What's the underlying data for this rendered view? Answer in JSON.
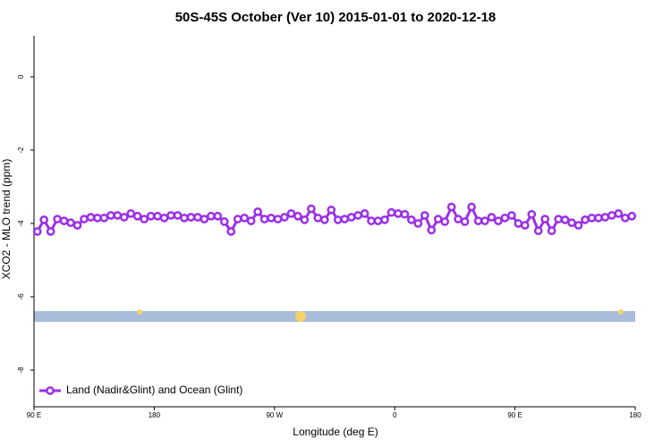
{
  "chart_data": {
    "type": "line",
    "title": "50S-45S October (Ver 10)   2015-01-01 to 2020-12-18",
    "x_label": "Longitude (deg E)",
    "y_label": "XCO2 - MLO trend (ppm)",
    "x": [
      92.5,
      97.5,
      102.5,
      107.5,
      112.5,
      117.5,
      122.5,
      127.5,
      132.5,
      137.5,
      142.5,
      147.5,
      152.5,
      157.5,
      162.5,
      167.5,
      172.5,
      177.5,
      182.5,
      187.5,
      192.5,
      197.5,
      202.5,
      207.5,
      212.5,
      217.5,
      222.5,
      227.5,
      232.5,
      237.5,
      242.5,
      247.5,
      252.5,
      257.5,
      262.5,
      267.5,
      272.5,
      277.5,
      282.5,
      287.5,
      292.5,
      297.5,
      302.5,
      307.5,
      312.5,
      317.5,
      322.5,
      327.5,
      332.5,
      337.5,
      342.5,
      347.5,
      352.5,
      357.5,
      362.5,
      367.5,
      372.5,
      377.5,
      382.5,
      387.5,
      392.5,
      397.5,
      402.5,
      407.5,
      412.5,
      417.5,
      422.5,
      427.5,
      432.5,
      437.5,
      442.5,
      447.5,
      452.5,
      457.5,
      462.5,
      467.5,
      472.5,
      477.5,
      482.5,
      487.5,
      492.5,
      497.5,
      502.5,
      507.5,
      512.5,
      517.5,
      522.5,
      527.5,
      532.5,
      537.5
    ],
    "series": [
      {
        "name": "Land (Nadir&Glint) and Ocean (Glint)",
        "color": "#9b30e8",
        "values": [
          -4.22,
          -3.9,
          -4.22,
          -3.88,
          -3.93,
          -3.98,
          -4.05,
          -3.88,
          -3.83,
          -3.85,
          -3.85,
          -3.78,
          -3.78,
          -3.83,
          -3.73,
          -3.8,
          -3.88,
          -3.8,
          -3.8,
          -3.85,
          -3.78,
          -3.78,
          -3.85,
          -3.83,
          -3.83,
          -3.88,
          -3.8,
          -3.8,
          -3.95,
          -4.22,
          -3.88,
          -3.85,
          -3.93,
          -3.68,
          -3.88,
          -3.85,
          -3.88,
          -3.83,
          -3.73,
          -3.8,
          -3.9,
          -3.6,
          -3.85,
          -3.9,
          -3.63,
          -3.9,
          -3.88,
          -3.83,
          -3.78,
          -3.73,
          -3.93,
          -3.93,
          -3.9,
          -3.7,
          -3.73,
          -3.75,
          -3.9,
          -4.0,
          -3.78,
          -4.18,
          -3.88,
          -3.95,
          -3.55,
          -3.88,
          -3.95,
          -3.55,
          -3.93,
          -3.93,
          -3.83,
          -3.93,
          -3.85,
          -3.78,
          -4.0,
          -4.05,
          -3.75,
          -4.2,
          -3.88,
          -4.2,
          -3.88,
          -3.9,
          -3.98,
          -4.05,
          -3.9,
          -3.85,
          -3.85,
          -3.83,
          -3.78,
          -3.73,
          -3.85,
          -3.8
        ]
      }
    ],
    "xlim": [
      90,
      540
    ],
    "xticks": [
      {
        "value": 90,
        "label": "90 E"
      },
      180,
      {
        "value": 270,
        "label": "90 W"
      },
      {
        "value": 360,
        "label": "0"
      },
      {
        "value": 450,
        "label": "90 E"
      },
      {
        "value": 540,
        "label": "180"
      }
    ],
    "ylim": [
      -9,
      1.12
    ],
    "yticks": [
      0,
      -2,
      -4,
      -6,
      -8
    ],
    "legend": "bottom left"
  }
}
